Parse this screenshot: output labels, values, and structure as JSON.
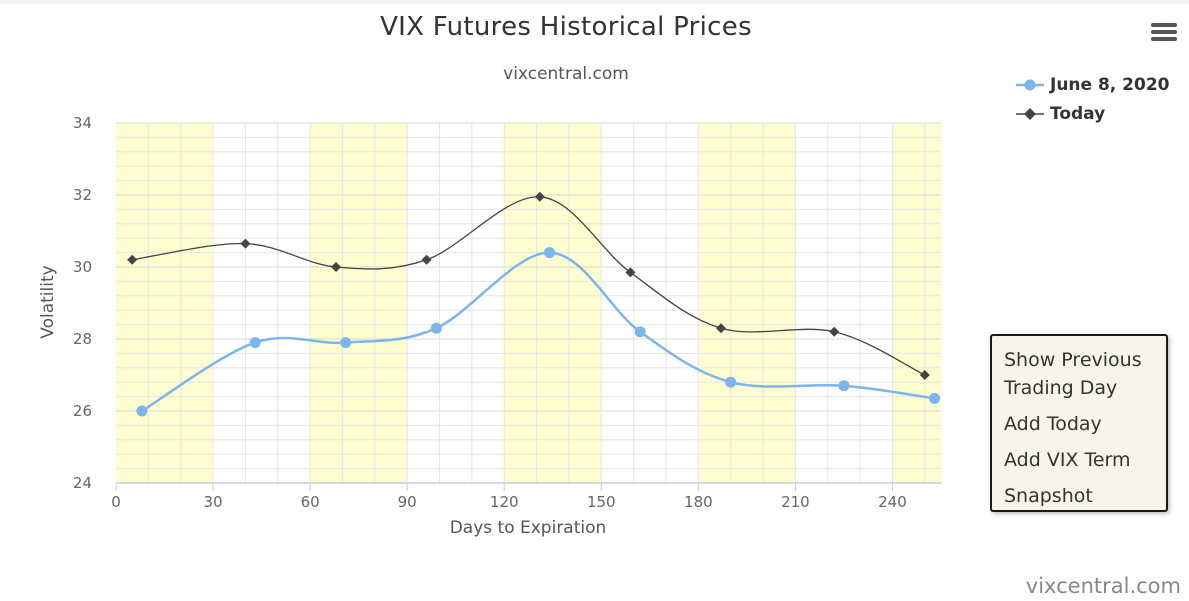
{
  "chart_data": {
    "type": "line",
    "title": "VIX Futures Historical Prices",
    "subtitle": "vixcentral.com",
    "xlabel": "Days to Expiration",
    "ylabel": "Volatility",
    "xlim": [
      0,
      255
    ],
    "ylim": [
      24,
      34
    ],
    "x_ticks": [
      0,
      30,
      60,
      90,
      120,
      150,
      180,
      210,
      240
    ],
    "y_ticks": [
      24,
      26,
      28,
      30,
      32,
      34
    ],
    "highlight_bands": [
      [
        0,
        30
      ],
      [
        60,
        90
      ],
      [
        120,
        150
      ],
      [
        180,
        210
      ],
      [
        240,
        255
      ]
    ],
    "grid": true,
    "legend_position": "top-right",
    "series": [
      {
        "name": "June 8, 2020",
        "color": "#7cb5ec",
        "marker": "circle",
        "points": [
          [
            8,
            26.0
          ],
          [
            43,
            27.9
          ],
          [
            71,
            27.9
          ],
          [
            99,
            28.3
          ],
          [
            134,
            30.4
          ],
          [
            162,
            28.2
          ],
          [
            190,
            26.8
          ],
          [
            225,
            26.7
          ],
          [
            253,
            26.35
          ]
        ]
      },
      {
        "name": "Today",
        "color": "#434348",
        "marker": "diamond",
        "points": [
          [
            5,
            30.2
          ],
          [
            40,
            30.65
          ],
          [
            68,
            30.0
          ],
          [
            96,
            30.2
          ],
          [
            131,
            31.95
          ],
          [
            159,
            29.85
          ],
          [
            187,
            28.3
          ],
          [
            222,
            28.2
          ],
          [
            250,
            27.0
          ]
        ]
      }
    ]
  },
  "menu": {
    "items": [
      "Show Previous Trading Day",
      "Add Today",
      "Add VIX Term",
      "Snapshot"
    ]
  },
  "credit": "vixcentral.com"
}
